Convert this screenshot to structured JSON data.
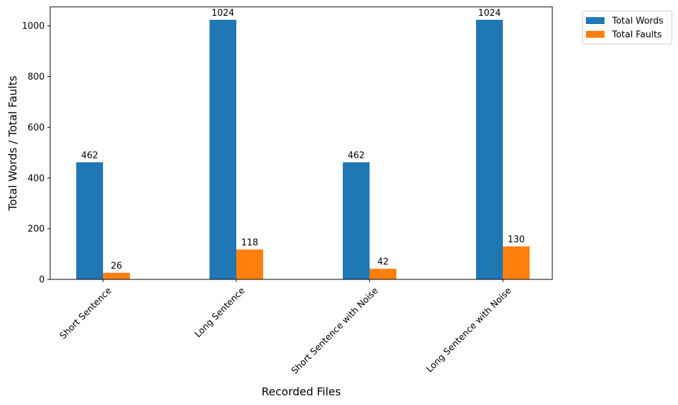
{
  "chart_data": {
    "type": "bar",
    "categories": [
      "Short Sentence",
      "Long Sentence",
      "Short Sentence with Noise",
      "Long Sentence with Noise"
    ],
    "series": [
      {
        "name": "Total Words",
        "color": "#1f77b4",
        "values": [
          462,
          1024,
          462,
          1024
        ]
      },
      {
        "name": "Total Faults",
        "color": "#ff7f0e",
        "values": [
          26,
          118,
          42,
          130
        ]
      }
    ],
    "xlabel": "Recorded Files",
    "ylabel": "Total Words / Total Faults",
    "ylim": [
      0,
      1075
    ],
    "yticks": [
      0,
      200,
      400,
      600,
      800,
      1000
    ],
    "grid": false,
    "legend_placement": "outside-top-right"
  }
}
